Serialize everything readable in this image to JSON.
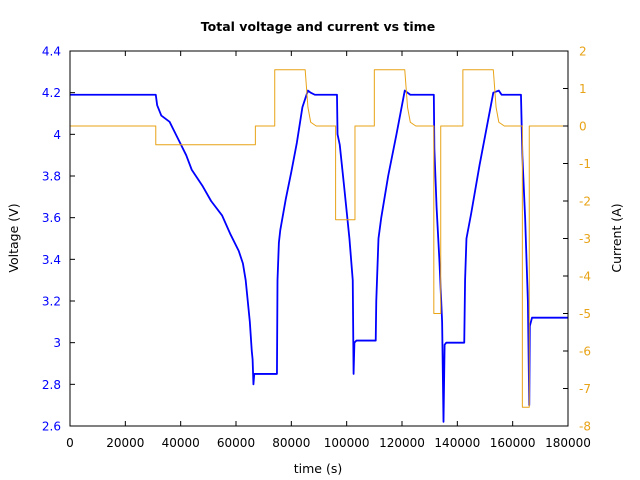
{
  "chart_data": {
    "type": "line",
    "title": "Total voltage and current vs time",
    "xlabel": "time (s)",
    "ylabel_left": "Voltage (V)",
    "ylabel_right": "Current (A)",
    "xlim": [
      0,
      180000
    ],
    "ylim_left": [
      2.6,
      4.4
    ],
    "ylim_right": [
      -8,
      2
    ],
    "x_ticks": [
      0,
      20000,
      40000,
      60000,
      80000,
      100000,
      120000,
      140000,
      160000,
      180000
    ],
    "y_left_ticks": [
      2.6,
      2.8,
      3,
      3.2,
      3.4,
      3.6,
      3.8,
      4,
      4.2,
      4.4
    ],
    "y_left_tick_labels": [
      "2.6",
      "2.8",
      "3",
      "3.2",
      "3.4",
      "3.6",
      "3.8",
      "4",
      "4.2",
      "4.4"
    ],
    "y_right_ticks": [
      -8,
      -7,
      -6,
      -5,
      -4,
      -3,
      -2,
      -1,
      0,
      1,
      2
    ],
    "grid": false,
    "colors": {
      "voltage": "#0000ff",
      "current": "#e8a317",
      "left_axis_text": "#0000ff",
      "right_axis_text": "#e8a317"
    },
    "series": [
      {
        "axis": "left",
        "points": [
          [
            0,
            4.19
          ],
          [
            31000,
            4.19
          ],
          [
            31500,
            4.14
          ],
          [
            33000,
            4.09
          ],
          [
            36000,
            4.06
          ],
          [
            39000,
            3.98
          ],
          [
            42000,
            3.9
          ],
          [
            44000,
            3.83
          ],
          [
            48000,
            3.75
          ],
          [
            51000,
            3.68
          ],
          [
            55000,
            3.61
          ],
          [
            58000,
            3.52
          ],
          [
            61000,
            3.44
          ],
          [
            62500,
            3.38
          ],
          [
            63500,
            3.3
          ],
          [
            65000,
            3.1
          ],
          [
            65700,
            2.96
          ],
          [
            66000,
            2.92
          ],
          [
            66300,
            2.8
          ],
          [
            66600,
            2.85
          ],
          [
            74800,
            2.85
          ],
          [
            75000,
            3.3
          ],
          [
            75500,
            3.48
          ],
          [
            76000,
            3.54
          ],
          [
            78000,
            3.69
          ],
          [
            80000,
            3.82
          ],
          [
            82000,
            3.96
          ],
          [
            84000,
            4.13
          ],
          [
            86000,
            4.21
          ],
          [
            87000,
            4.2
          ],
          [
            88500,
            4.19
          ],
          [
            96500,
            4.19
          ],
          [
            96700,
            4.0
          ],
          [
            97500,
            3.95
          ],
          [
            99000,
            3.76
          ],
          [
            101000,
            3.5
          ],
          [
            102200,
            3.3
          ],
          [
            102500,
            2.85
          ],
          [
            102800,
            3.0
          ],
          [
            103500,
            3.01
          ],
          [
            110500,
            3.01
          ],
          [
            110700,
            3.2
          ],
          [
            111500,
            3.5
          ],
          [
            112500,
            3.6
          ],
          [
            115000,
            3.8
          ],
          [
            118000,
            4.0
          ],
          [
            121000,
            4.21
          ],
          [
            122000,
            4.2
          ],
          [
            123000,
            4.19
          ],
          [
            131500,
            4.19
          ],
          [
            131700,
            3.93
          ],
          [
            132500,
            3.65
          ],
          [
            133500,
            3.4
          ],
          [
            134500,
            3.1
          ],
          [
            135000,
            2.62
          ],
          [
            135400,
            2.99
          ],
          [
            136000,
            3.0
          ],
          [
            142500,
            3.0
          ],
          [
            142800,
            3.3
          ],
          [
            143300,
            3.5
          ],
          [
            145000,
            3.62
          ],
          [
            148000,
            3.85
          ],
          [
            151000,
            4.06
          ],
          [
            153000,
            4.2
          ],
          [
            155000,
            4.21
          ],
          [
            156000,
            4.19
          ],
          [
            163000,
            4.19
          ],
          [
            163500,
            3.9
          ],
          [
            164500,
            3.6
          ],
          [
            165500,
            3.2
          ],
          [
            166000,
            2.7
          ],
          [
            166200,
            3.08
          ],
          [
            167000,
            3.12
          ],
          [
            180000,
            3.12
          ]
        ]
      },
      {
        "axis": "right",
        "points": [
          [
            0,
            0
          ],
          [
            31000,
            0
          ],
          [
            31000,
            -0.5
          ],
          [
            67000,
            -0.5
          ],
          [
            67000,
            0
          ],
          [
            74000,
            0
          ],
          [
            74000,
            1.5
          ],
          [
            85000,
            1.5
          ],
          [
            86000,
            0.5
          ],
          [
            87000,
            0.1
          ],
          [
            89000,
            0
          ],
          [
            96000,
            0
          ],
          [
            96000,
            -2.5
          ],
          [
            103000,
            -2.5
          ],
          [
            103000,
            0
          ],
          [
            110000,
            0
          ],
          [
            110000,
            1.5
          ],
          [
            121000,
            1.5
          ],
          [
            122000,
            0.5
          ],
          [
            123000,
            0.1
          ],
          [
            125000,
            0
          ],
          [
            131500,
            0
          ],
          [
            131500,
            -5
          ],
          [
            134000,
            -5
          ],
          [
            134000,
            0
          ],
          [
            142000,
            0
          ],
          [
            142000,
            1.5
          ],
          [
            153000,
            1.5
          ],
          [
            154000,
            0.5
          ],
          [
            155000,
            0.1
          ],
          [
            157000,
            0
          ],
          [
            163500,
            0
          ],
          [
            163500,
            -7.5
          ],
          [
            166000,
            -7.5
          ],
          [
            166000,
            0
          ],
          [
            180000,
            0
          ]
        ]
      }
    ]
  }
}
